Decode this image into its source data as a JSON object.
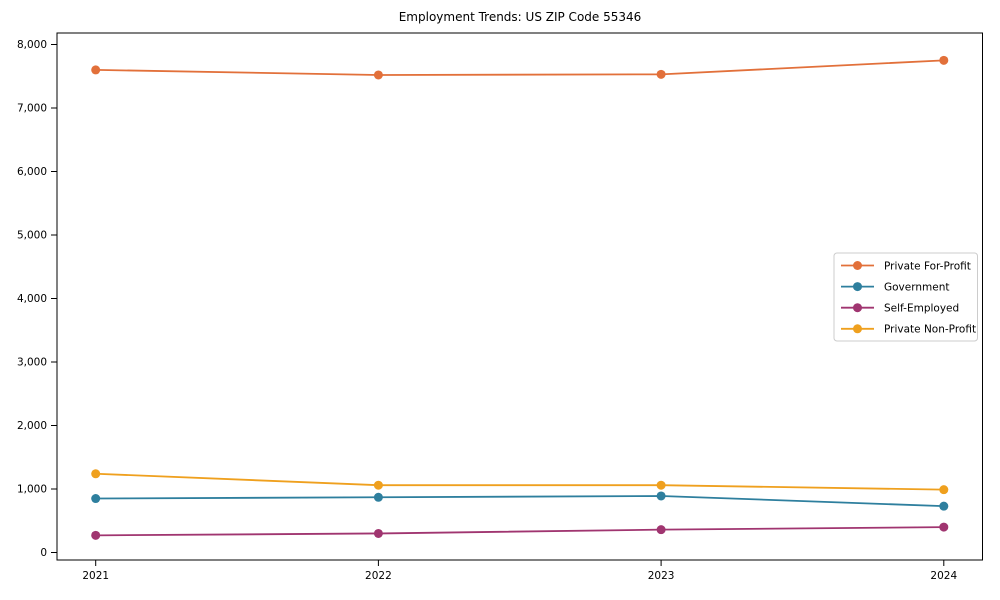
{
  "page": {
    "background_color": "#ffffff"
  },
  "chart_data": {
    "type": "line",
    "title": "Employment Trends: US ZIP Code 55346",
    "xlabel": "",
    "ylabel": "",
    "x_labels": [
      "2021",
      "2022",
      "2023",
      "2024"
    ],
    "y_ticks": [
      0,
      1000,
      2000,
      3000,
      4000,
      5000,
      6000,
      7000,
      8000
    ],
    "y_tick_labels": [
      "0",
      "1,000",
      "2,000",
      "3,000",
      "4,000",
      "5,000",
      "6,000",
      "7,000",
      "8,000"
    ],
    "ylim": [
      -118,
      8181
    ],
    "grid": false,
    "axis_color": "#000000",
    "series": [
      {
        "name": "Private For-Profit",
        "color": "#e2703a",
        "values": [
          7600,
          7520,
          7530,
          7750
        ]
      },
      {
        "name": "Government",
        "color": "#2e7f9e",
        "values": [
          850,
          870,
          890,
          730
        ]
      },
      {
        "name": "Self-Employed",
        "color": "#a03570",
        "values": [
          270,
          300,
          360,
          400
        ]
      },
      {
        "name": "Private Non-Profit",
        "color": "#efa01e",
        "values": [
          1240,
          1060,
          1060,
          990
        ]
      }
    ],
    "legend": {
      "position": "center-right",
      "background": "#ffffff",
      "border_color": "#cccccc",
      "entries": [
        "Private For-Profit",
        "Government",
        "Self-Employed",
        "Private Non-Profit"
      ]
    }
  }
}
